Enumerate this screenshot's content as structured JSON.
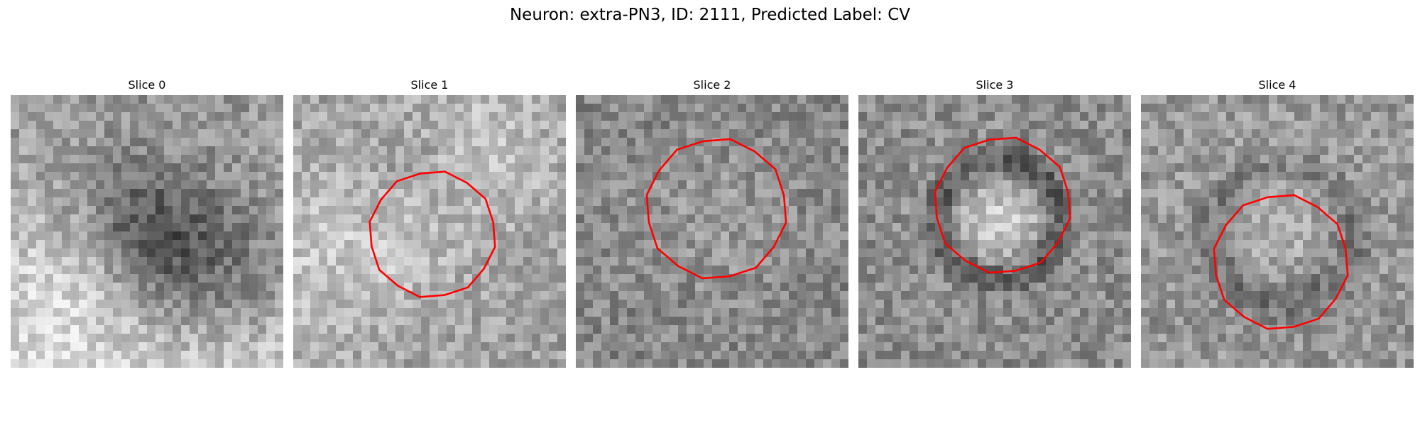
{
  "figure": {
    "title": "Neuron: extra-PN3, ID: 2111, Predicted Label: CV",
    "contour_color": "#ff0000",
    "slices": [
      {
        "title": "Slice 0",
        "has_contour": false
      },
      {
        "title": "Slice 1",
        "has_contour": true
      },
      {
        "title": "Slice 2",
        "has_contour": true
      },
      {
        "title": "Slice 3",
        "has_contour": true
      },
      {
        "title": "Slice 4",
        "has_contour": true
      }
    ]
  }
}
